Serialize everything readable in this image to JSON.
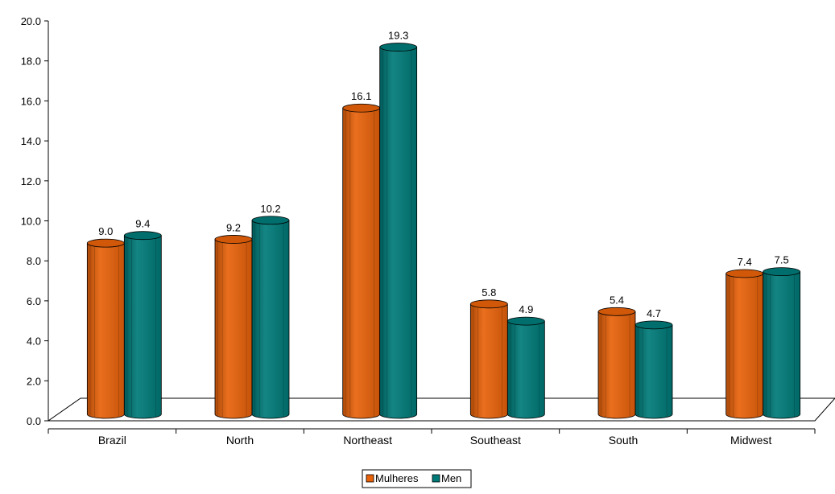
{
  "chart_data": {
    "type": "bar",
    "categories": [
      "Brazil",
      "North",
      "Northeast",
      "Southeast",
      "South",
      "Midwest"
    ],
    "series": [
      {
        "name": "Mulheres",
        "values": [
          9.0,
          9.2,
          16.1,
          5.8,
          5.4,
          7.4
        ],
        "color": "#e8620a"
      },
      {
        "name": "Men",
        "values": [
          9.4,
          10.2,
          19.3,
          4.9,
          4.7,
          7.5
        ],
        "color": "#007a78"
      }
    ],
    "ylim": [
      0,
      20
    ],
    "yticks": [
      "0.0",
      "2.0",
      "4.0",
      "6.0",
      "8.0",
      "10.0",
      "12.0",
      "14.0",
      "16.0",
      "18.0",
      "20.0"
    ],
    "data_labels": [
      [
        "9.0",
        "9.2",
        "16.1",
        "5.8",
        "5.4",
        "7.4"
      ],
      [
        "9.4",
        "10.2",
        "19.3",
        "4.9",
        "4.7",
        "7.5"
      ]
    ],
    "title": "",
    "xlabel": "",
    "ylabel": "",
    "grid": false,
    "legend_position": "bottom-center",
    "style": "3d-cylinder"
  }
}
